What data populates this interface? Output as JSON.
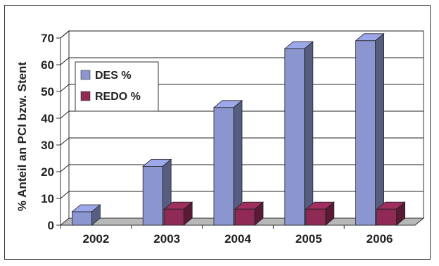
{
  "chart_data": {
    "type": "bar",
    "title": "",
    "xlabel": "",
    "ylabel": "% Anteil an PCI bzw. Stent",
    "categories": [
      "2002",
      "2003",
      "2004",
      "2005",
      "2006"
    ],
    "series": [
      {
        "name": "DES %",
        "values": [
          5,
          22,
          44,
          66,
          69
        ],
        "color": "#8b96d0"
      },
      {
        "name": "REDO %",
        "values": [
          0,
          6,
          6,
          6,
          6
        ],
        "color": "#8e2a55"
      }
    ],
    "ylim": [
      0,
      70
    ],
    "yticks": [
      "0",
      "10",
      "20",
      "30",
      "40",
      "50",
      "60",
      "70"
    ],
    "grid": true,
    "legend": "top-left",
    "style": "3d-bar"
  }
}
